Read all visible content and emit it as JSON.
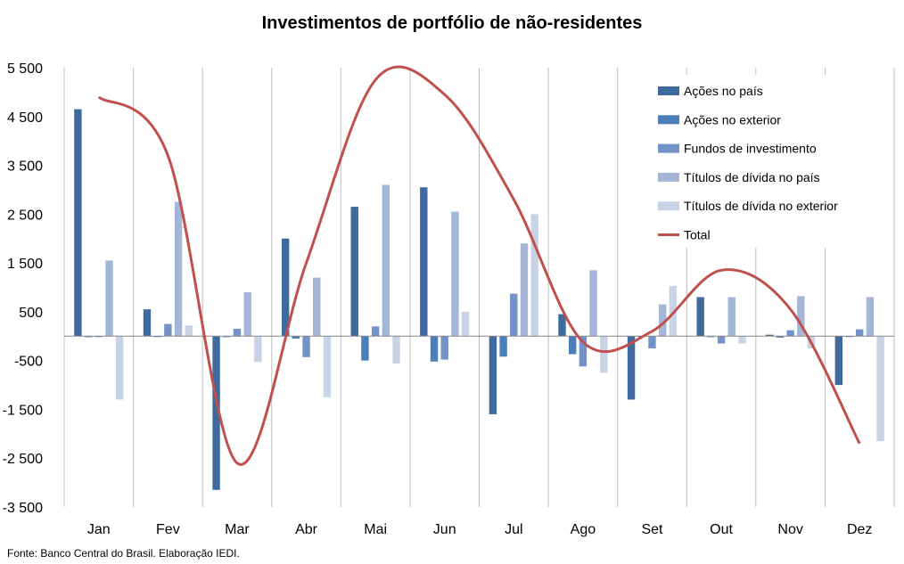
{
  "chart_data": {
    "type": "bar",
    "title": "Investimentos de portfólio de não-residentes",
    "categories": [
      "Jan",
      "Fev",
      "Mar",
      "Abr",
      "Mai",
      "Jun",
      "Jul",
      "Ago",
      "Set",
      "Out",
      "Nov",
      "Dez"
    ],
    "ylim": [
      -3500,
      5500
    ],
    "yticks": [
      5500,
      4500,
      3500,
      2500,
      1500,
      500,
      -500,
      -1500,
      -2500,
      -3500
    ],
    "ytick_labels": [
      "5 500",
      "4 500",
      "3 500",
      "2 500",
      "1 500",
      "500",
      "-500",
      "-1 500",
      "-2 500",
      "-3 500"
    ],
    "xlabel": "",
    "ylabel": "",
    "grid": "vertical category separators",
    "legend_position": "right",
    "series": [
      {
        "name": "Ações no país",
        "color": "#3E6A9E",
        "values": [
          4650,
          550,
          -3150,
          2000,
          2650,
          3050,
          -1600,
          450,
          -1300,
          800,
          30,
          -1000
        ]
      },
      {
        "name": "Ações no exterior",
        "color": "#4C7EBA",
        "values": [
          -20,
          0,
          -20,
          -50,
          -500,
          -520,
          -420,
          -370,
          0,
          -20,
          -30,
          0
        ]
      },
      {
        "name": "Fundos de investimento",
        "color": "#7393C8",
        "values": [
          -20,
          250,
          150,
          -430,
          200,
          -480,
          870,
          -620,
          -250,
          -150,
          120,
          140
        ]
      },
      {
        "name": "Títulos de dívida no país",
        "color": "#A3B6D8",
        "values": [
          1550,
          2750,
          900,
          1200,
          3100,
          2550,
          1900,
          1350,
          650,
          800,
          820,
          800
        ]
      },
      {
        "name": "Títulos de dívida no exterior",
        "color": "#C8D3E8",
        "values": [
          -1300,
          220,
          -530,
          -1250,
          -560,
          500,
          2500,
          -750,
          1030,
          -150,
          -250,
          -2150
        ]
      }
    ],
    "total": {
      "name": "Total",
      "color": "#C0504D",
      "values": [
        4900,
        3700,
        -2600,
        1500,
        5250,
        4950,
        2800,
        -120,
        100,
        1350,
        550,
        -2200
      ]
    }
  },
  "source": "Fonte: Banco Central do Brasil. Elaboração IEDI."
}
